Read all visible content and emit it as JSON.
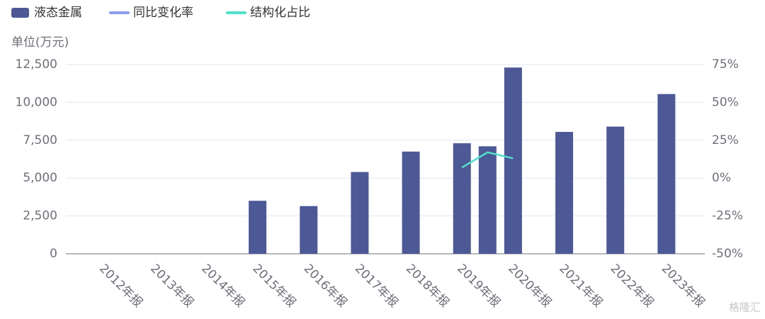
{
  "chart_data": {
    "type": "bar",
    "y_axis_label": "单位(万元)",
    "watermark": "格隆汇",
    "categories": [
      null,
      "2012年报",
      null,
      "2013年报",
      null,
      "2014年报",
      null,
      "2015年报",
      null,
      "2016年报",
      null,
      "2017年报",
      null,
      "2018年报",
      null,
      "2019年报",
      null,
      "2020年报",
      null,
      "2021年报",
      null,
      "2022年报",
      null,
      "2023年报",
      null
    ],
    "series": [
      {
        "name": "液态金属",
        "type": "bar",
        "color": "#4d5897",
        "values": [
          null,
          null,
          null,
          null,
          null,
          null,
          null,
          3500,
          null,
          3150,
          null,
          5400,
          null,
          6750,
          null,
          7300,
          7100,
          12300,
          null,
          8050,
          null,
          8400,
          null,
          10550,
          null
        ]
      },
      {
        "name": "同比变化率",
        "type": "line",
        "axis": "y2",
        "color": "#8d9ef0",
        "values": [
          null,
          null,
          null,
          null,
          null,
          null,
          null,
          null,
          null,
          null,
          null,
          null,
          null,
          null,
          null,
          null,
          null,
          null,
          null,
          null,
          null,
          null,
          null,
          null,
          null
        ]
      },
      {
        "name": "结构化占比",
        "type": "line",
        "axis": "y2",
        "color": "#4fe0c8",
        "values": [
          null,
          null,
          null,
          null,
          null,
          null,
          null,
          null,
          null,
          null,
          null,
          null,
          null,
          null,
          null,
          7,
          17,
          13,
          null,
          null,
          null,
          null,
          null,
          null,
          null
        ]
      }
    ],
    "ylim": [
      0,
      12500
    ],
    "yticks": [
      0,
      {
        "value": 2500,
        "label": "2,500"
      },
      {
        "value": 5000,
        "label": "5,000"
      },
      {
        "value": 7500,
        "label": "7,500"
      },
      {
        "value": 10000,
        "label": "10,000"
      },
      {
        "value": 12500,
        "label": "12,500"
      }
    ],
    "y2lim": [
      -50,
      75
    ],
    "y2ticks": [
      {
        "value": -50,
        "label": "-50%"
      },
      {
        "value": -25,
        "label": "-25%"
      },
      {
        "value": 0,
        "label": "0%"
      },
      {
        "value": 25,
        "label": "25%"
      },
      {
        "value": 50,
        "label": "50%"
      },
      {
        "value": 75,
        "label": "75%"
      }
    ],
    "grid": true
  }
}
